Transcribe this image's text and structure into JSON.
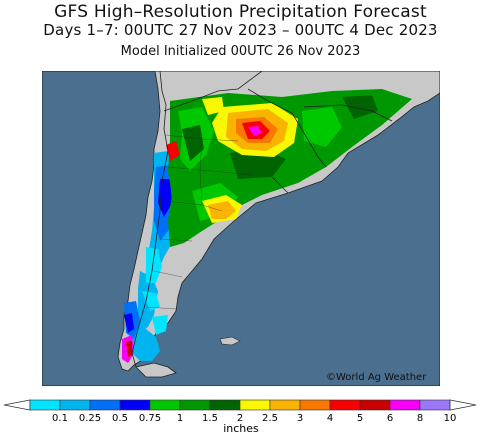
{
  "header": {
    "title": "GFS High–Resolution Precipitation Forecast",
    "period": "Days 1–7: 00UTC 27 Nov 2023 – 00UTC 4 Dec 2023",
    "initialized": "Model Initialized 00UTC 26 Nov 2023"
  },
  "map": {
    "credit": "©World Ag Weather",
    "ocean_color": "#4a6f8f",
    "land_color": "#c8c8c8",
    "border_color": "#222222"
  },
  "legend": {
    "unit": "inches",
    "ticks": [
      "0.1",
      "0.25",
      "0.5",
      "0.75",
      "1",
      "1.5",
      "2",
      "2.5",
      "3",
      "4",
      "5",
      "6",
      "8",
      "10"
    ],
    "colors": [
      "#00e4ff",
      "#00b4f0",
      "#0070f8",
      "#0000f8",
      "#00c800",
      "#009800",
      "#006400",
      "#f8f800",
      "#f8b400",
      "#f87800",
      "#f80000",
      "#c80000",
      "#f800f8",
      "#9878f8"
    ]
  }
}
